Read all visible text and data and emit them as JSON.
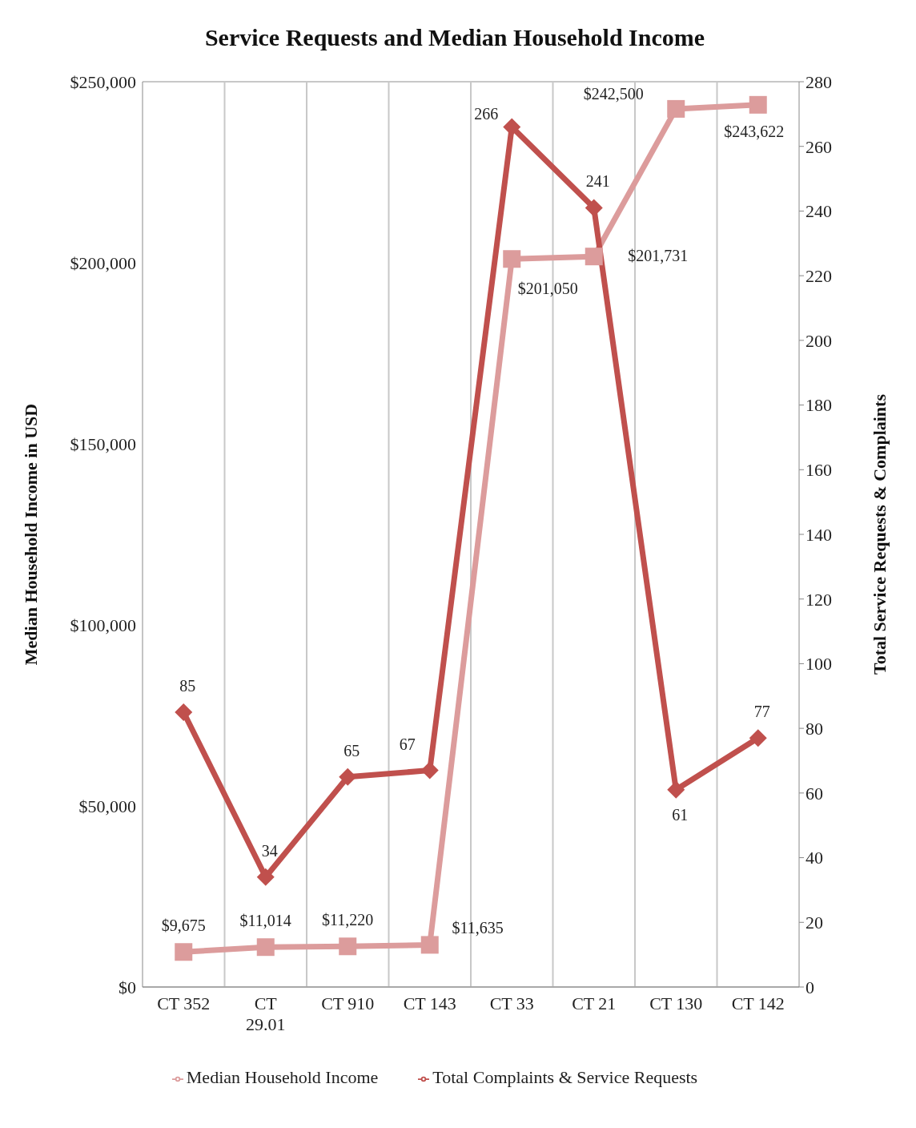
{
  "chart_data": {
    "type": "line",
    "title": "Service Requests and Median Household Income",
    "ylabel": "Median Household Income in USD",
    "y2label": "Total Service Requests &  Complaints",
    "categories": [
      "CT 352",
      "CT 29.01",
      "CT 910",
      "CT 143",
      "CT 33",
      "CT 21",
      "CT 130",
      "CT 142"
    ],
    "series": [
      {
        "name": "Median Household Income",
        "color": "#dc9c9c",
        "marker": "square",
        "values": [
          9675,
          11014,
          11220,
          11635,
          201050,
          201731,
          242500,
          243622
        ],
        "value_labels": [
          "$9,675",
          "$11,014",
          "$11,220",
          "$11,635",
          "$201,050",
          "$201,731",
          "$242,500",
          "$243,622"
        ]
      },
      {
        "name": "Total Complaints & Service Requests",
        "color": "#c0504d",
        "marker": "diamond",
        "axis": "y2",
        "values": [
          85,
          34,
          65,
          67,
          266,
          241,
          61,
          77
        ],
        "value_labels": [
          "85",
          "34",
          "65",
          "67",
          "266",
          "241",
          "61",
          "77"
        ]
      }
    ],
    "ylim": [
      0,
      250000
    ],
    "yticks": [
      {
        "value": 0,
        "label": "$0"
      },
      {
        "value": 50000,
        "label": "$50,000"
      },
      {
        "value": 100000,
        "label": "$100,000"
      },
      {
        "value": 150000,
        "label": "$150,000"
      },
      {
        "value": 200000,
        "label": "$200,000"
      },
      {
        "value": 250000,
        "label": "$250,000"
      }
    ],
    "y2lim": [
      0,
      280
    ],
    "y2ticks": [
      0,
      20,
      40,
      60,
      80,
      100,
      120,
      140,
      160,
      180,
      200,
      220,
      240,
      260,
      280
    ],
    "grid": true,
    "legend": "bottom"
  }
}
